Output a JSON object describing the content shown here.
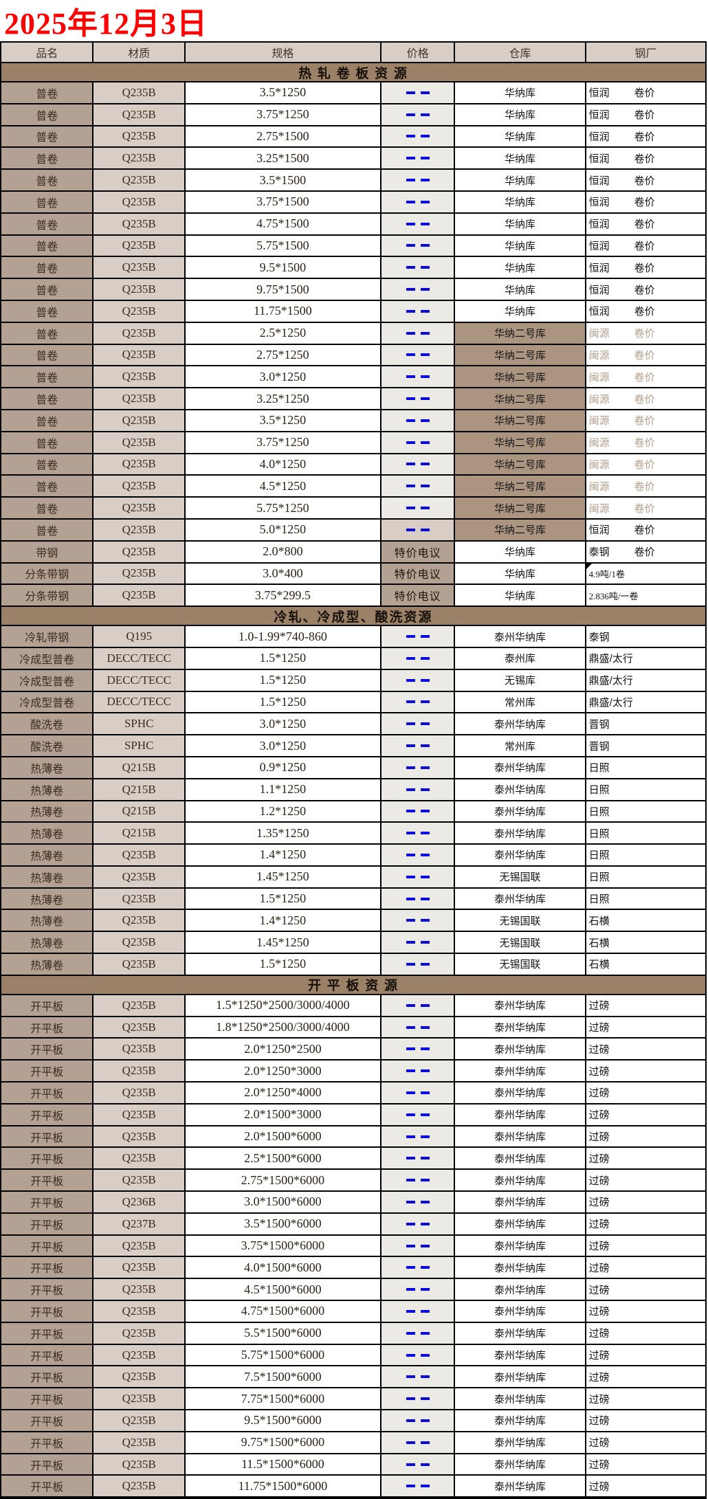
{
  "page": {
    "date_title": "2025年12月3日"
  },
  "colors": {
    "date_red": "#ff0000",
    "dash_blue": "#0a0ae0",
    "section_brown": "#9b8168",
    "name_col_tan": "#b3a193",
    "material_col_tan": "#d8cec6",
    "warehouse_highlight_tan": "#ab9480",
    "price_col_gray": "#eceae4"
  },
  "table": {
    "columns": [
      "品名",
      "材质",
      "规格",
      "价格",
      "仓库",
      "钢厂"
    ],
    "sections": [
      {
        "title": "热 轧 卷 板 资 源",
        "rows": [
          {
            "name": "普卷",
            "material": "Q235B",
            "spec": "3.5*1250",
            "price": "",
            "warehouse": "华纳库",
            "mill": "恒润",
            "mill2": "卷价"
          },
          {
            "name": "普卷",
            "material": "Q235B",
            "spec": "3.75*1250",
            "price": "",
            "warehouse": "华纳库",
            "mill": "恒润",
            "mill2": "卷价"
          },
          {
            "name": "普卷",
            "material": "Q235B",
            "spec": "2.75*1500",
            "price": "",
            "warehouse": "华纳库",
            "mill": "恒润",
            "mill2": "卷价"
          },
          {
            "name": "普卷",
            "material": "Q235B",
            "spec": "3.25*1500",
            "price": "",
            "warehouse": "华纳库",
            "mill": "恒润",
            "mill2": "卷价"
          },
          {
            "name": "普卷",
            "material": "Q235B",
            "spec": "3.5*1500",
            "price": "",
            "warehouse": "华纳库",
            "mill": "恒润",
            "mill2": "卷价"
          },
          {
            "name": "普卷",
            "material": "Q235B",
            "spec": "3.75*1500",
            "price": "",
            "warehouse": "华纳库",
            "mill": "恒润",
            "mill2": "卷价"
          },
          {
            "name": "普卷",
            "material": "Q235B",
            "spec": "4.75*1500",
            "price": "",
            "warehouse": "华纳库",
            "mill": "恒润",
            "mill2": "卷价"
          },
          {
            "name": "普卷",
            "material": "Q235B",
            "spec": "5.75*1500",
            "price": "",
            "warehouse": "华纳库",
            "mill": "恒润",
            "mill2": "卷价"
          },
          {
            "name": "普卷",
            "material": "Q235B",
            "spec": "9.5*1500",
            "price": "",
            "warehouse": "华纳库",
            "mill": "恒润",
            "mill2": "卷价"
          },
          {
            "name": "普卷",
            "material": "Q235B",
            "spec": "9.75*1500",
            "price": "",
            "warehouse": "华纳库",
            "mill": "恒润",
            "mill2": "卷价"
          },
          {
            "name": "普卷",
            "material": "Q235B",
            "spec": "11.75*1500",
            "price": "",
            "warehouse": "华纳库",
            "mill": "恒润",
            "mill2": "卷价"
          },
          {
            "name": "普卷",
            "material": "Q235B",
            "spec": "2.5*1250",
            "price": "",
            "warehouse": "华纳二号库",
            "wh_hl": true,
            "mill": "闽源",
            "mill2": "卷价",
            "mill_muted": true
          },
          {
            "name": "普卷",
            "material": "Q235B",
            "spec": "2.75*1250",
            "price": "",
            "warehouse": "华纳二号库",
            "wh_hl": true,
            "mill": "闽源",
            "mill2": "卷价",
            "mill_muted": true
          },
          {
            "name": "普卷",
            "material": "Q235B",
            "spec": "3.0*1250",
            "price": "",
            "warehouse": "华纳二号库",
            "wh_hl": true,
            "mill": "闽源",
            "mill2": "卷价",
            "mill_muted": true
          },
          {
            "name": "普卷",
            "material": "Q235B",
            "spec": "3.25*1250",
            "price": "",
            "warehouse": "华纳二号库",
            "wh_hl": true,
            "mill": "闽源",
            "mill2": "卷价",
            "mill_muted": true
          },
          {
            "name": "普卷",
            "material": "Q235B",
            "spec": "3.5*1250",
            "price": "",
            "warehouse": "华纳二号库",
            "wh_hl": true,
            "mill": "闽源",
            "mill2": "卷价",
            "mill_muted": true
          },
          {
            "name": "普卷",
            "material": "Q235B",
            "spec": "3.75*1250",
            "price": "",
            "warehouse": "华纳二号库",
            "wh_hl": true,
            "mill": "闽源",
            "mill2": "卷价",
            "mill_muted": true
          },
          {
            "name": "普卷",
            "material": "Q235B",
            "spec": "4.0*1250",
            "price": "",
            "warehouse": "华纳二号库",
            "wh_hl": true,
            "mill": "闽源",
            "mill2": "卷价",
            "mill_muted": true
          },
          {
            "name": "普卷",
            "material": "Q235B",
            "spec": "4.5*1250",
            "price": "",
            "warehouse": "华纳二号库",
            "wh_hl": true,
            "mill": "闽源",
            "mill2": "卷价",
            "mill_muted": true
          },
          {
            "name": "普卷",
            "material": "Q235B",
            "spec": "5.75*1250",
            "price": "",
            "warehouse": "华纳二号库",
            "wh_hl": true,
            "mill": "闽源",
            "mill2": "卷价",
            "mill_muted": true
          },
          {
            "name": "普卷",
            "material": "Q235B",
            "spec": "5.0*1250",
            "price": "",
            "price_bg": "pale",
            "warehouse": "华纳二号库",
            "wh_hl": true,
            "mill": "恒润",
            "mill2": "卷价"
          },
          {
            "name": "带钢",
            "material": "Q235B",
            "spec": "2.0*800",
            "price": "特价电议",
            "price_bg": "tan",
            "warehouse": "华纳库",
            "mill": "泰钢",
            "mill2": "卷价"
          },
          {
            "name": "分条带钢",
            "material": "Q235B",
            "spec": "3.0*400",
            "price": "特价电议",
            "price_bg": "tan",
            "warehouse": "华纳库",
            "mill": "4.9吨/1卷",
            "mill_small": true,
            "marker": true
          },
          {
            "name": "分条带钢",
            "material": "Q235B",
            "spec": "3.75*299.5",
            "price": "特价电议",
            "price_bg": "tan",
            "warehouse": "华纳库",
            "mill": "2.836吨/一卷",
            "mill_small": true
          }
        ]
      },
      {
        "title": "冷轧、冷成型、酸洗资源",
        "rows": [
          {
            "name": "冷轧带钢",
            "material": "Q195",
            "spec": "1.0-1.99*740-860",
            "price": "",
            "warehouse": "泰州华纳库",
            "mill": "泰钢"
          },
          {
            "name": "冷成型普卷",
            "material": "DECC/TECC",
            "spec": "1.5*1250",
            "price": "",
            "warehouse": "泰州库",
            "mill": "鼎盛/太行"
          },
          {
            "name": "冷成型普卷",
            "material": "DECC/TECC",
            "spec": "1.5*1250",
            "price": "",
            "warehouse": "无锡库",
            "mill": "鼎盛/太行"
          },
          {
            "name": "冷成型普卷",
            "material": "DECC/TECC",
            "spec": "1.5*1250",
            "price": "",
            "warehouse": "常州库",
            "mill": "鼎盛/太行"
          },
          {
            "name": "酸洗卷",
            "material": "SPHC",
            "spec": "3.0*1250",
            "price": "",
            "warehouse": "泰州华纳库",
            "mill": "晋钢"
          },
          {
            "name": "酸洗卷",
            "material": "SPHC",
            "spec": "3.0*1250",
            "price": "",
            "warehouse": "常州库",
            "mill": "晋钢"
          },
          {
            "name": "热薄卷",
            "material": "Q215B",
            "spec": "0.9*1250",
            "price": "",
            "warehouse": "泰州华纳库",
            "mill": "日照"
          },
          {
            "name": "热薄卷",
            "material": "Q215B",
            "spec": "1.1*1250",
            "price": "",
            "warehouse": "泰州华纳库",
            "mill": "日照"
          },
          {
            "name": "热薄卷",
            "material": "Q215B",
            "spec": "1.2*1250",
            "price": "",
            "warehouse": "泰州华纳库",
            "mill": "日照"
          },
          {
            "name": "热薄卷",
            "material": "Q215B",
            "spec": "1.35*1250",
            "price": "",
            "warehouse": "泰州华纳库",
            "mill": "日照"
          },
          {
            "name": "热薄卷",
            "material": "Q235B",
            "spec": "1.4*1250",
            "price": "",
            "warehouse": "泰州华纳库",
            "mill": "日照"
          },
          {
            "name": "热薄卷",
            "material": "Q235B",
            "spec": "1.45*1250",
            "price": "",
            "warehouse": "无锡国联",
            "mill": "日照"
          },
          {
            "name": "热薄卷",
            "material": "Q235B",
            "spec": "1.5*1250",
            "price": "",
            "warehouse": "泰州华纳库",
            "mill": "日照"
          },
          {
            "name": "热薄卷",
            "material": "Q235B",
            "spec": "1.4*1250",
            "price": "",
            "warehouse": "无锡国联",
            "mill": "石横"
          },
          {
            "name": "热薄卷",
            "material": "Q235B",
            "spec": "1.45*1250",
            "price": "",
            "warehouse": "无锡国联",
            "mill": "石横"
          },
          {
            "name": "热薄卷",
            "material": "Q235B",
            "spec": "1.5*1250",
            "price": "",
            "warehouse": "无锡国联",
            "mill": "石横"
          }
        ]
      },
      {
        "title": "开 平 板 资 源",
        "rows": [
          {
            "name": "开平板",
            "material": "Q235B",
            "spec": "1.5*1250*2500/3000/4000",
            "price": "",
            "warehouse": "泰州华纳库",
            "mill": "过磅"
          },
          {
            "name": "开平板",
            "material": "Q235B",
            "spec": "1.8*1250*2500/3000/4000",
            "price": "",
            "warehouse": "泰州华纳库",
            "mill": "过磅"
          },
          {
            "name": "开平板",
            "material": "Q235B",
            "spec": "2.0*1250*2500",
            "price": "",
            "warehouse": "泰州华纳库",
            "mill": "过磅"
          },
          {
            "name": "开平板",
            "material": "Q235B",
            "spec": "2.0*1250*3000",
            "price": "",
            "warehouse": "泰州华纳库",
            "mill": "过磅"
          },
          {
            "name": "开平板",
            "material": "Q235B",
            "spec": "2.0*1250*4000",
            "price": "",
            "warehouse": "泰州华纳库",
            "mill": "过磅"
          },
          {
            "name": "开平板",
            "material": "Q235B",
            "spec": "2.0*1500*3000",
            "price": "",
            "warehouse": "泰州华纳库",
            "mill": "过磅"
          },
          {
            "name": "开平板",
            "material": "Q235B",
            "spec": "2.0*1500*6000",
            "price": "",
            "warehouse": "泰州华纳库",
            "mill": "过磅"
          },
          {
            "name": "开平板",
            "material": "Q235B",
            "spec": "2.5*1500*6000",
            "price": "",
            "warehouse": "泰州华纳库",
            "mill": "过磅"
          },
          {
            "name": "开平板",
            "material": "Q235B",
            "spec": "2.75*1500*6000",
            "price": "",
            "warehouse": "泰州华纳库",
            "mill": "过磅"
          },
          {
            "name": "开平板",
            "material": "Q236B",
            "spec": "3.0*1500*6000",
            "price": "",
            "warehouse": "泰州华纳库",
            "mill": "过磅"
          },
          {
            "name": "开平板",
            "material": "Q237B",
            "spec": "3.5*1500*6000",
            "price": "",
            "warehouse": "泰州华纳库",
            "mill": "过磅"
          },
          {
            "name": "开平板",
            "material": "Q235B",
            "spec": "3.75*1500*6000",
            "price": "",
            "warehouse": "泰州华纳库",
            "mill": "过磅"
          },
          {
            "name": "开平板",
            "material": "Q235B",
            "spec": "4.0*1500*6000",
            "price": "",
            "warehouse": "泰州华纳库",
            "mill": "过磅"
          },
          {
            "name": "开平板",
            "material": "Q235B",
            "spec": "4.5*1500*6000",
            "price": "",
            "warehouse": "泰州华纳库",
            "mill": "过磅"
          },
          {
            "name": "开平板",
            "material": "Q235B",
            "spec": "4.75*1500*6000",
            "price": "",
            "warehouse": "泰州华纳库",
            "mill": "过磅"
          },
          {
            "name": "开平板",
            "material": "Q235B",
            "spec": "5.5*1500*6000",
            "price": "",
            "warehouse": "泰州华纳库",
            "mill": "过磅"
          },
          {
            "name": "开平板",
            "material": "Q235B",
            "spec": "5.75*1500*6000",
            "price": "",
            "warehouse": "泰州华纳库",
            "mill": "过磅"
          },
          {
            "name": "开平板",
            "material": "Q235B",
            "spec": "7.5*1500*6000",
            "price": "",
            "warehouse": "泰州华纳库",
            "mill": "过磅"
          },
          {
            "name": "开平板",
            "material": "Q235B",
            "spec": "7.75*1500*6000",
            "price": "",
            "warehouse": "泰州华纳库",
            "mill": "过磅"
          },
          {
            "name": "开平板",
            "material": "Q235B",
            "spec": "9.5*1500*6000",
            "price": "",
            "warehouse": "泰州华纳库",
            "mill": "过磅"
          },
          {
            "name": "开平板",
            "material": "Q235B",
            "spec": "9.75*1500*6000",
            "price": "",
            "warehouse": "泰州华纳库",
            "mill": "过磅"
          },
          {
            "name": "开平板",
            "material": "Q235B",
            "spec": "11.5*1500*6000",
            "price": "",
            "warehouse": "泰州华纳库",
            "mill": "过磅"
          },
          {
            "name": "开平板",
            "material": "Q235B",
            "spec": "11.75*1500*6000",
            "price": "",
            "warehouse": "泰州华纳库",
            "mill": "过磅"
          }
        ]
      }
    ]
  }
}
